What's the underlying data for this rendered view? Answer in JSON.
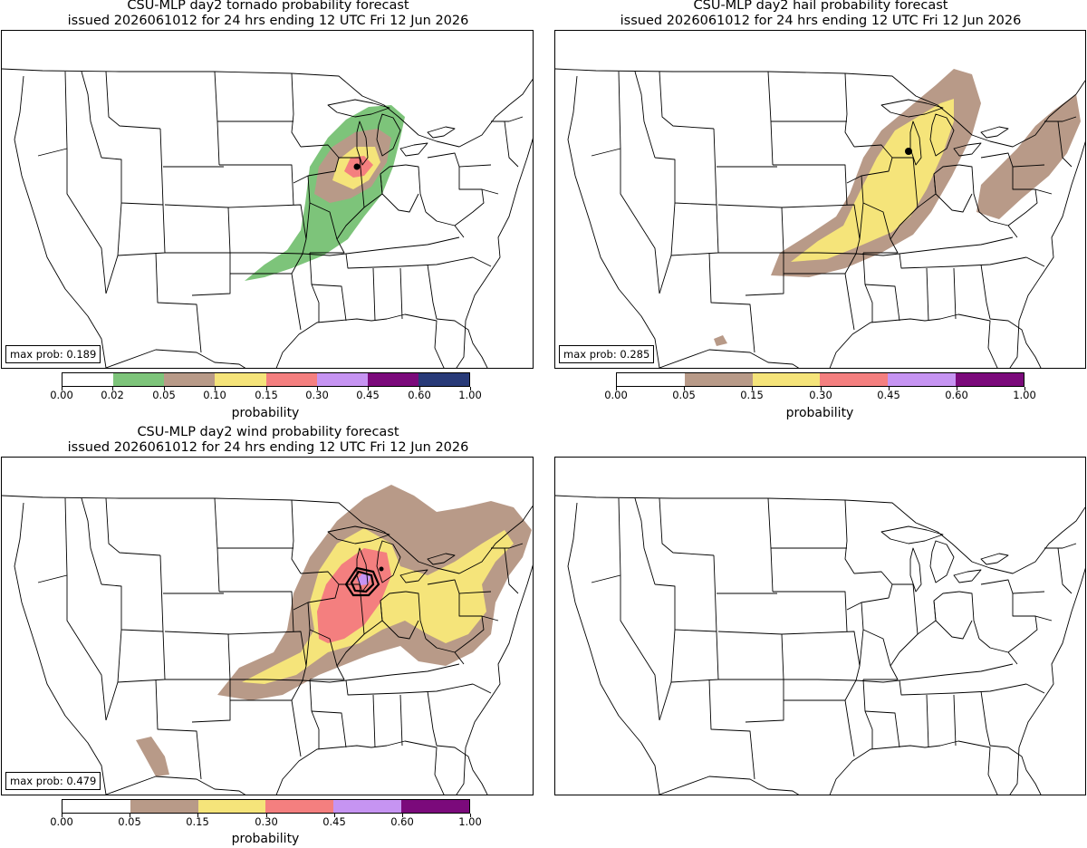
{
  "panels": {
    "tornado": {
      "title_line1": "CSU-MLP day2 tornado probability forecast",
      "title_line2": "issued 2026061012 for 24 hrs ending 12 UTC Fri 12 Jun 2026",
      "max_prob": "max prob: 0.189"
    },
    "hail": {
      "title_line1": "CSU-MLP day2 hail probability forecast",
      "title_line2": "issued 2026061012 for 24 hrs ending 12 UTC Fri 12 Jun 2026",
      "max_prob": "max prob: 0.285"
    },
    "wind": {
      "title_line1": "CSU-MLP day2 wind probability forecast",
      "title_line2": "issued 2026061012 for 24 hrs ending 12 UTC Fri 12 Jun 2026",
      "max_prob": "max prob: 0.479"
    }
  },
  "colorbars": {
    "tornado": {
      "label": "probability",
      "ticks": [
        "0.00",
        "0.02",
        "0.05",
        "0.10",
        "0.15",
        "0.30",
        "0.45",
        "0.60",
        "1.00"
      ],
      "colors": [
        "#ffffff",
        "#7dc47a",
        "#b89a88",
        "#f5e47a",
        "#f47f7f",
        "#c694f2",
        "#7b0a7b",
        "#283a78"
      ]
    },
    "hail": {
      "label": "probability",
      "ticks": [
        "0.00",
        "0.05",
        "0.15",
        "0.30",
        "0.45",
        "0.60",
        "1.00"
      ],
      "colors": [
        "#ffffff",
        "#b89a88",
        "#f5e47a",
        "#f47f7f",
        "#c694f2",
        "#7b0a7b"
      ]
    },
    "wind": {
      "label": "probability",
      "ticks": [
        "0.00",
        "0.05",
        "0.15",
        "0.30",
        "0.45",
        "0.60",
        "1.00"
      ],
      "colors": [
        "#ffffff",
        "#b89a88",
        "#f5e47a",
        "#f47f7f",
        "#c694f2",
        "#7b0a7b"
      ]
    }
  }
}
